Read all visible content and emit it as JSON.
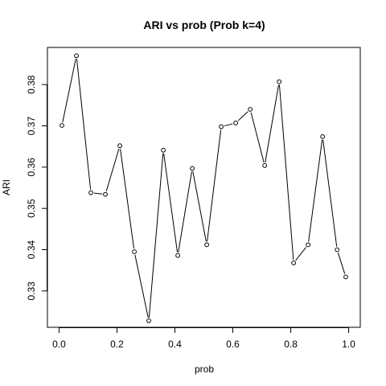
{
  "chart_data": {
    "type": "line",
    "title": "ARI vs prob (Prob k=4)",
    "xlabel": "prob",
    "ylabel": "ARI",
    "xlim": [
      -0.04,
      1.04
    ],
    "ylim": [
      0.3212,
      0.389
    ],
    "xticks": [
      0.0,
      0.2,
      0.4,
      0.6,
      0.8,
      1.0
    ],
    "xtick_labels": [
      "0.0",
      "0.2",
      "0.4",
      "0.6",
      "0.8",
      "1.0"
    ],
    "yticks": [
      0.33,
      0.34,
      0.35,
      0.36,
      0.37,
      0.38
    ],
    "ytick_labels": [
      "0.33",
      "0.34",
      "0.35",
      "0.36",
      "0.37",
      "0.38"
    ],
    "grid": false,
    "marker": "open-circle",
    "x": [
      0.01,
      0.06,
      0.11,
      0.16,
      0.21,
      0.26,
      0.31,
      0.36,
      0.41,
      0.46,
      0.51,
      0.56,
      0.61,
      0.66,
      0.71,
      0.76,
      0.81,
      0.86,
      0.91,
      0.96,
      0.99
    ],
    "y": [
      0.3701,
      0.387,
      0.3538,
      0.3534,
      0.3652,
      0.3395,
      0.3228,
      0.3641,
      0.3386,
      0.3597,
      0.3412,
      0.3698,
      0.3707,
      0.374,
      0.3604,
      0.3807,
      0.3368,
      0.3412,
      0.3674,
      0.34,
      0.3334
    ]
  }
}
